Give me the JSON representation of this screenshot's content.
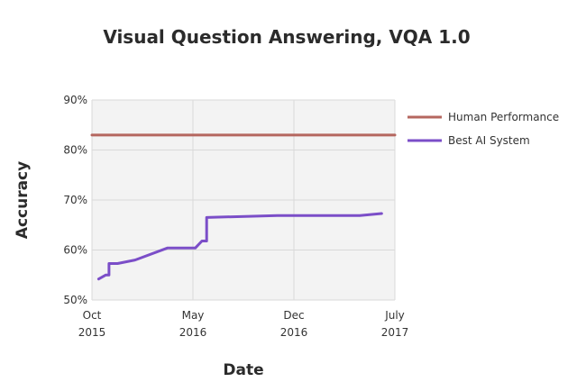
{
  "chart_data": {
    "type": "line",
    "title": "Visual Question Answering, VQA 1.0",
    "xlabel": "Date",
    "ylabel": "Accuracy",
    "ylim": [
      50,
      90
    ],
    "y_ticks": [
      "50%",
      "60%",
      "70%",
      "80%",
      "90%"
    ],
    "x_ticks": [
      {
        "month": "Oct",
        "year": "2015"
      },
      {
        "month": "May",
        "year": "2016"
      },
      {
        "month": "Dec",
        "year": "2016"
      },
      {
        "month": "July",
        "year": "2017"
      }
    ],
    "xlim": [
      "2015-10-01",
      "2017-07-01"
    ],
    "grid": true,
    "legend_position": "right",
    "series": [
      {
        "name": "Human Performance",
        "color": "#b5675f",
        "points": [
          [
            "2015-10-01",
            83
          ],
          [
            "2017-07-01",
            83
          ]
        ]
      },
      {
        "name": "Best AI System",
        "color": "#7b4ec8",
        "points": [
          [
            "2015-10-15",
            54.2
          ],
          [
            "2015-10-30",
            55.0
          ],
          [
            "2015-11-06",
            55.0
          ],
          [
            "2015-11-06",
            57.3
          ],
          [
            "2015-11-24",
            57.3
          ],
          [
            "2015-12-31",
            58.0
          ],
          [
            "2016-03-08",
            60.4
          ],
          [
            "2016-05-06",
            60.4
          ],
          [
            "2016-05-20",
            61.8
          ],
          [
            "2016-05-30",
            61.8
          ],
          [
            "2016-05-30",
            66.5
          ],
          [
            "2016-10-26",
            66.9
          ],
          [
            "2017-04-18",
            66.9
          ],
          [
            "2017-06-03",
            67.3
          ]
        ]
      }
    ]
  }
}
